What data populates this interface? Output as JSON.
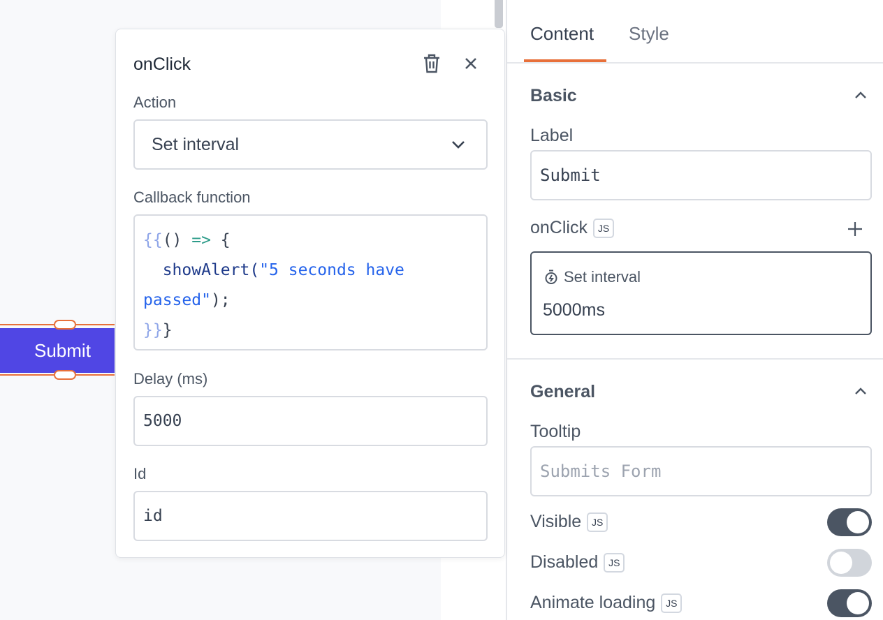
{
  "canvas": {
    "widget_label": "Submit"
  },
  "popover": {
    "title": "onClick",
    "action_label": "Action",
    "action_value": "Set interval",
    "callback_label": "Callback function",
    "callback_code": {
      "l1a": "{{",
      "l1b": "() ",
      "l1c": "=>",
      "l1d": " {",
      "l2a": "  showAlert(",
      "l2b": "\"5 seconds have passed\"",
      "l2c": ");",
      "l3a": "}}",
      "l3b": "}"
    },
    "delay_label": "Delay (ms)",
    "delay_value": "5000",
    "id_label": "Id",
    "id_value": "id"
  },
  "panel": {
    "tabs": [
      {
        "label": "Content",
        "active": true
      },
      {
        "label": "Style",
        "active": false
      }
    ],
    "basic": {
      "title": "Basic",
      "label_label": "Label",
      "label_value": "Submit",
      "onclick_label": "onClick",
      "js": "JS",
      "event_action": "Set interval",
      "event_detail": "5000ms"
    },
    "general": {
      "title": "General",
      "tooltip_label": "Tooltip",
      "tooltip_placeholder": "Submits Form",
      "visible_label": "Visible",
      "visible": true,
      "disabled_label": "Disabled",
      "disabled": false,
      "animate_label": "Animate loading",
      "animate": true
    },
    "accent": "#e8703a"
  }
}
